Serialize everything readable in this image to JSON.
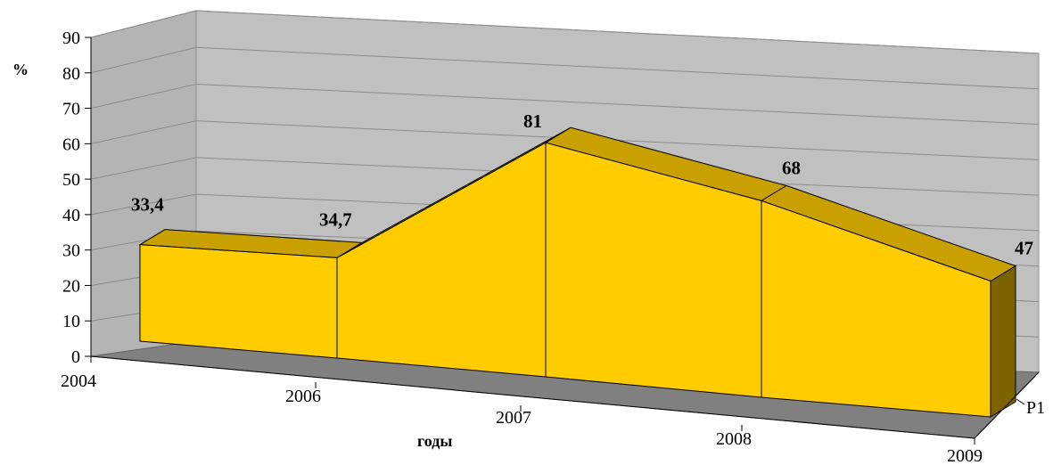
{
  "chart_data": {
    "type": "area",
    "three_d": true,
    "categories": [
      "2004",
      "2006",
      "2007",
      "2008",
      "2009"
    ],
    "series": [
      {
        "name": "Р1",
        "values": [
          33.4,
          34.7,
          81,
          68,
          47
        ]
      }
    ],
    "data_labels": [
      "33,4",
      "34,7",
      "81",
      "68",
      "47"
    ],
    "ylabel": "%",
    "xlabel": "годы",
    "depth_label": "Р1",
    "ylim": [
      0,
      90
    ],
    "yticks": [
      "0",
      "10",
      "20",
      "30",
      "40",
      "50",
      "60",
      "70",
      "80",
      "90"
    ],
    "grid": true,
    "legend": "none",
    "colors": {
      "front": "#ffcc00",
      "top": "#c8a000",
      "side": "#7d6200",
      "back_wall": "#c0c0c0",
      "side_wall": "#b4b4b4",
      "floor": "#808080",
      "grid": "#8c8c8c"
    }
  }
}
